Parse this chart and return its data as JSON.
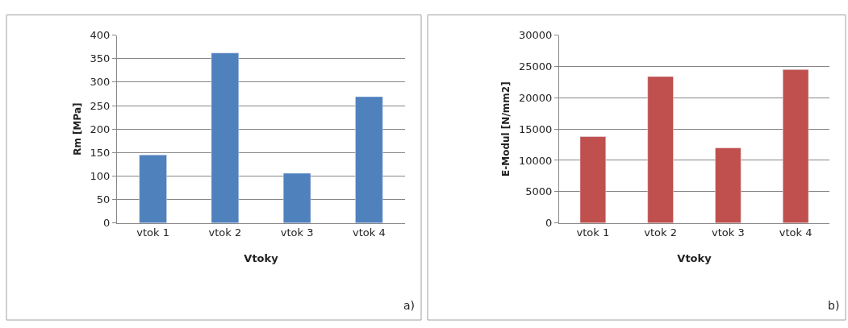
{
  "chart_data": [
    {
      "type": "bar",
      "categories": [
        "vtok 1",
        "vtok 2",
        "vtok 3",
        "vtok 4"
      ],
      "values": [
        145,
        362,
        106,
        269
      ],
      "color": "#4f81bd",
      "xlabel": "Vtoky",
      "ylabel": "Rm [MPa]",
      "ylim": [
        0,
        400
      ],
      "yticks": [
        0,
        50,
        100,
        150,
        200,
        250,
        300,
        350,
        400
      ],
      "grid": "y",
      "annotations": [
        "a)"
      ]
    },
    {
      "type": "bar",
      "categories": [
        "vtok 1",
        "vtok 2",
        "vtok 3",
        "vtok 4"
      ],
      "values": [
        13800,
        23400,
        12000,
        24500
      ],
      "color": "#c0504d",
      "xlabel": "Vtoky",
      "ylabel": "E-Modul [N/mm2]",
      "ylim": [
        0,
        30000
      ],
      "yticks": [
        0,
        5000,
        10000,
        15000,
        20000,
        25000,
        30000
      ],
      "grid": "y",
      "annotations": [
        "b)"
      ]
    }
  ]
}
